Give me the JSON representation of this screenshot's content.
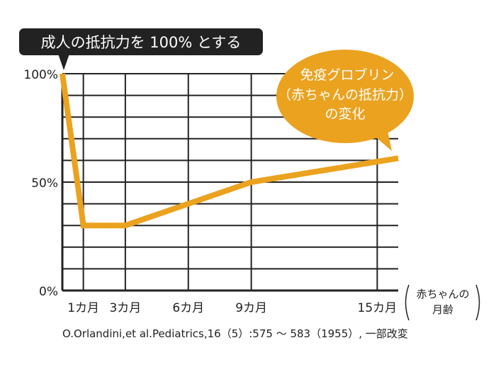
{
  "chart_data": {
    "type": "line",
    "title": "成人の抵抗力を 100% とする",
    "annotation": "免疫グロブリン（赤ちゃんの抵抗力）の変化",
    "annotation_lines": [
      "免疫グロブリン",
      "（赤ちゃんの抵抗力）",
      "の変化"
    ],
    "xlabel_lines": [
      "赤ちゃんの",
      "月齢"
    ],
    "ylabel": "",
    "x": [
      0,
      1,
      3,
      6,
      9,
      16
    ],
    "y": [
      100,
      30,
      30,
      40,
      50,
      61
    ],
    "xlim": [
      0,
      16
    ],
    "ylim": [
      0,
      100
    ],
    "x_ticks": [
      {
        "value": 1,
        "label": "1カ月"
      },
      {
        "value": 3,
        "label": "3カ月"
      },
      {
        "value": 6,
        "label": "6カ月"
      },
      {
        "value": 9,
        "label": "9カ月"
      },
      {
        "value": 15,
        "label": "15カ月"
      }
    ],
    "y_ticks": [
      {
        "value": 100,
        "label": "100%"
      },
      {
        "value": 50,
        "label": "50%"
      },
      {
        "value": 0,
        "label": "0%"
      }
    ],
    "grid": true,
    "line_color": "#eba21f",
    "source": "O.Orlandini,et al.Pediatrics,16（5）:575 ～ 583（1955）, 一部改変"
  }
}
